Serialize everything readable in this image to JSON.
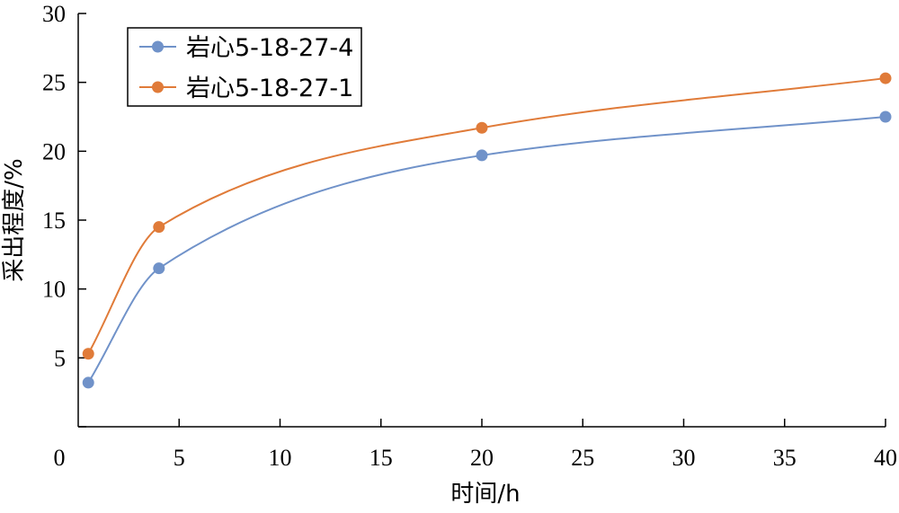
{
  "chart_data": {
    "type": "line",
    "xlabel": "时间/h",
    "ylabel": "采出程度/%",
    "xlim": [
      0,
      40
    ],
    "ylim": [
      0,
      30
    ],
    "xticks": [
      0,
      5,
      10,
      15,
      20,
      25,
      30,
      35,
      40
    ],
    "yticks": [
      0,
      5,
      10,
      15,
      20,
      25,
      30
    ],
    "grid": false,
    "legend_position": "top-left",
    "series": [
      {
        "name": "岩心5-18-27-4",
        "color": "#7092c9",
        "x": [
          0.5,
          4,
          20,
          40
        ],
        "y": [
          3.2,
          11.5,
          19.7,
          22.5
        ]
      },
      {
        "name": "岩心5-18-27-1",
        "color": "#e07b39",
        "x": [
          0.5,
          4,
          20,
          40
        ],
        "y": [
          5.3,
          14.5,
          21.7,
          25.3
        ]
      }
    ]
  }
}
